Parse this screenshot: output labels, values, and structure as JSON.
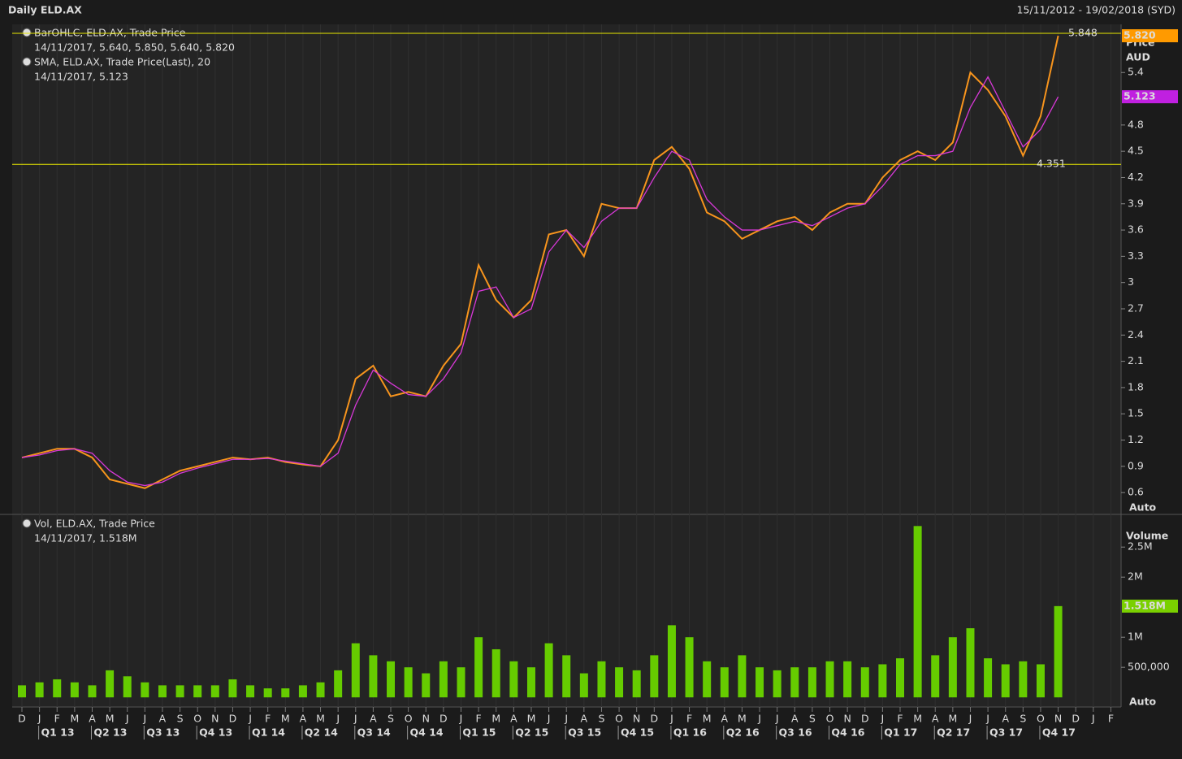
{
  "header": {
    "title": "Daily ELD.AX",
    "date_range": "15/11/2012 - 19/02/2018 (SYD)"
  },
  "chart_data": [
    {
      "type": "line",
      "legend": [
        {
          "name": "BarOHLC, ELD.AX, Trade Price",
          "detail": "14/11/2017, 5.640, 5.850, 5.640, 5.820"
        },
        {
          "name": "SMA, ELD.AX, Trade Price(Last),  20",
          "detail": "14/11/2017, 5.123"
        }
      ],
      "axis_title": "Price",
      "axis_unit": "AUD",
      "scale_mode": "Auto",
      "ylim": [
        0.36,
        5.95
      ],
      "yticks": [
        0.6,
        0.9,
        1.2,
        1.5,
        1.8,
        2.1,
        2.4,
        2.7,
        3,
        3.3,
        3.6,
        3.9,
        4.2,
        4.5,
        4.8,
        5.4
      ],
      "series": [
        {
          "name": "BarOHLC",
          "color": "#f7941d",
          "values": [
            1.0,
            1.05,
            1.1,
            1.1,
            1.0,
            0.75,
            0.7,
            0.65,
            0.75,
            0.85,
            0.9,
            0.95,
            1.0,
            0.98,
            1.0,
            0.95,
            0.92,
            0.9,
            1.2,
            1.9,
            2.05,
            1.7,
            1.75,
            1.7,
            2.05,
            2.3,
            3.2,
            2.8,
            2.6,
            2.8,
            3.55,
            3.6,
            3.3,
            3.9,
            3.85,
            3.85,
            4.4,
            4.55,
            4.3,
            3.8,
            3.7,
            3.5,
            3.6,
            3.7,
            3.75,
            3.6,
            3.8,
            3.9,
            3.9,
            4.2,
            4.4,
            4.5,
            4.4,
            4.6,
            5.4,
            5.2,
            4.9,
            4.45,
            4.9,
            5.82,
            null,
            null,
            null
          ]
        },
        {
          "name": "SMA",
          "color": "#d838d8",
          "values": [
            1.0,
            1.03,
            1.08,
            1.1,
            1.05,
            0.85,
            0.72,
            0.68,
            0.72,
            0.82,
            0.88,
            0.93,
            0.98,
            0.98,
            0.99,
            0.96,
            0.93,
            0.9,
            1.05,
            1.6,
            2.0,
            1.85,
            1.72,
            1.7,
            1.9,
            2.2,
            2.9,
            2.95,
            2.6,
            2.7,
            3.35,
            3.6,
            3.4,
            3.7,
            3.85,
            3.85,
            4.2,
            4.5,
            4.4,
            3.95,
            3.75,
            3.6,
            3.6,
            3.65,
            3.7,
            3.65,
            3.75,
            3.85,
            3.9,
            4.1,
            4.35,
            4.45,
            4.45,
            4.5,
            5.0,
            5.35,
            4.95,
            4.55,
            4.75,
            5.123,
            null,
            null,
            null
          ]
        }
      ],
      "reference_lines": [
        {
          "value": 5.848,
          "label": "5.848",
          "color": "#e8e800"
        },
        {
          "value": 4.351,
          "label": "4.351",
          "color": "#e8e800"
        }
      ],
      "badges": [
        {
          "value": 5.82,
          "label": "5.820",
          "color": "#ff9a00"
        },
        {
          "value": 5.123,
          "label": "5.123",
          "color": "#c020e0"
        }
      ]
    },
    {
      "type": "bar",
      "legend": [
        {
          "name": "Vol, ELD.AX, Trade Price",
          "detail": "14/11/2017, 1.518M"
        }
      ],
      "axis_title": "Volume",
      "scale_mode": "Auto",
      "color": "#66cc00",
      "ylim": [
        -160000,
        3030000
      ],
      "yticks": [
        {
          "value": 500000,
          "label": "500,000"
        },
        {
          "value": 1000000,
          "label": "1M"
        },
        {
          "value": 2000000,
          "label": "2M"
        },
        {
          "value": 2500000,
          "label": "2.5M"
        }
      ],
      "categories": [
        "D",
        "J",
        "F",
        "M",
        "A",
        "M",
        "J",
        "J",
        "A",
        "S",
        "O",
        "N",
        "D",
        "J",
        "F",
        "M",
        "A",
        "M",
        "J",
        "J",
        "A",
        "S",
        "O",
        "N",
        "D",
        "J",
        "F",
        "M",
        "A",
        "M",
        "J",
        "J",
        "A",
        "S",
        "O",
        "N",
        "D",
        "J",
        "F",
        "M",
        "A",
        "M",
        "J",
        "J",
        "A",
        "S",
        "O",
        "N",
        "D",
        "J",
        "F",
        "M",
        "A",
        "M",
        "J",
        "J",
        "A",
        "S",
        "O",
        "N",
        "D",
        "J",
        "F"
      ],
      "quarters": [
        "Q1 13",
        "Q2 13",
        "Q3 13",
        "Q4 13",
        "Q1 14",
        "Q2 14",
        "Q3 14",
        "Q4 14",
        "Q1 15",
        "Q2 15",
        "Q3 15",
        "Q4 15",
        "Q1 16",
        "Q2 16",
        "Q3 16",
        "Q4 16",
        "Q1 17",
        "Q2 17",
        "Q3 17",
        "Q4 17"
      ],
      "values": [
        200000,
        250000,
        300000,
        250000,
        200000,
        450000,
        350000,
        250000,
        200000,
        200000,
        200000,
        200000,
        300000,
        200000,
        150000,
        150000,
        200000,
        250000,
        450000,
        900000,
        700000,
        600000,
        500000,
        400000,
        600000,
        500000,
        1000000,
        800000,
        600000,
        500000,
        900000,
        700000,
        400000,
        600000,
        500000,
        450000,
        700000,
        1200000,
        1000000,
        600000,
        500000,
        700000,
        500000,
        450000,
        500000,
        500000,
        600000,
        600000,
        500000,
        550000,
        650000,
        2850000,
        700000,
        1000000,
        1150000,
        650000,
        550000,
        600000,
        550000,
        1518000,
        null,
        null,
        null
      ],
      "badges": [
        {
          "value": 1518000,
          "label": "1.518M",
          "color": "#7ad000"
        }
      ]
    }
  ]
}
